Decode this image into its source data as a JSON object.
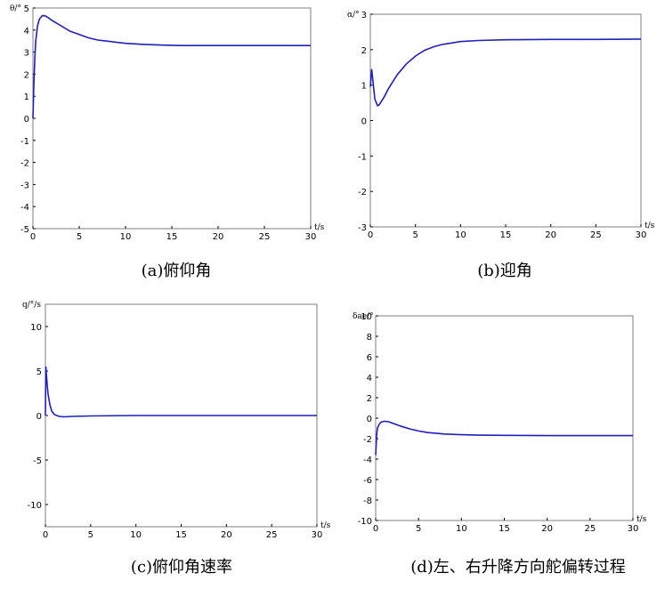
{
  "chart_data": [
    {
      "type": "line",
      "caption": "(a)俯仰角",
      "ylabel": "θ/°",
      "xlabel": "t/s",
      "xlim": [
        0,
        30
      ],
      "ylim": [
        -5,
        5
      ],
      "xticks": [
        0,
        5,
        10,
        15,
        20,
        25,
        30
      ],
      "yticks": [
        -5,
        -4,
        -3,
        -2,
        -1,
        0,
        1,
        2,
        3,
        4,
        5
      ],
      "grid": false,
      "series": [
        {
          "x": [
            0,
            0.1,
            0.2,
            0.3,
            0.5,
            0.7,
            1,
            1.3,
            1.7,
            2,
            3,
            4,
            5,
            6,
            7,
            8,
            10,
            12,
            14,
            16,
            18,
            20,
            25,
            30
          ],
          "y": [
            0,
            1.5,
            2.7,
            3.5,
            4.2,
            4.5,
            4.65,
            4.65,
            4.55,
            4.45,
            4.2,
            3.95,
            3.8,
            3.65,
            3.55,
            3.5,
            3.4,
            3.35,
            3.32,
            3.3,
            3.3,
            3.3,
            3.3,
            3.3
          ]
        }
      ]
    },
    {
      "type": "line",
      "caption": "(b)迎角",
      "ylabel": "α/°",
      "xlabel": "t/s",
      "xlim": [
        0,
        30
      ],
      "ylim": [
        -3,
        3
      ],
      "xticks": [
        0,
        5,
        10,
        15,
        20,
        25,
        30
      ],
      "yticks": [
        -3,
        -2,
        -1,
        0,
        1,
        2,
        3
      ],
      "grid": false,
      "series": [
        {
          "x": [
            0,
            0.15,
            0.3,
            0.5,
            0.8,
            1,
            1.5,
            2,
            3,
            4,
            5,
            6,
            7,
            8,
            10,
            12,
            15,
            20,
            25,
            30
          ],
          "y": [
            0.95,
            1.45,
            1.1,
            0.6,
            0.42,
            0.45,
            0.65,
            0.9,
            1.3,
            1.6,
            1.82,
            1.98,
            2.08,
            2.15,
            2.23,
            2.26,
            2.28,
            2.29,
            2.29,
            2.3
          ]
        }
      ]
    },
    {
      "type": "line",
      "caption": "(c)俯仰角速率",
      "ylabel": "q/°/s",
      "xlabel": "t/s",
      "xlim": [
        0,
        30
      ],
      "ylim": [
        -12.5,
        12.5
      ],
      "xticks": [
        0,
        5,
        10,
        15,
        20,
        25,
        30
      ],
      "yticks": [
        -10,
        -5,
        0,
        5,
        10
      ],
      "grid": false,
      "series": [
        {
          "x": [
            0,
            0.05,
            0.1,
            0.2,
            0.3,
            0.5,
            0.7,
            1,
            1.5,
            2,
            3,
            5,
            10,
            15,
            20,
            25,
            30
          ],
          "y": [
            0,
            5.5,
            4.8,
            3.5,
            2.4,
            1.2,
            0.5,
            0.1,
            -0.1,
            -0.15,
            -0.1,
            -0.05,
            0,
            0,
            0,
            0,
            0
          ]
        }
      ]
    },
    {
      "type": "line",
      "caption": "(d)左、右升降方向舵偏转过程",
      "ylabel": "δae/°",
      "xlabel": "t/s",
      "xlim": [
        0,
        30
      ],
      "ylim": [
        -10,
        10
      ],
      "xticks": [
        0,
        5,
        10,
        15,
        20,
        25,
        30
      ],
      "yticks": [
        -10,
        -8,
        -6,
        -4,
        -2,
        0,
        2,
        4,
        6,
        8,
        10
      ],
      "grid": false,
      "series": [
        {
          "x": [
            0,
            0.1,
            0.2,
            0.4,
            0.6,
            1,
            1.5,
            2,
            3,
            4,
            5,
            6,
            8,
            10,
            12,
            15,
            20,
            25,
            30
          ],
          "y": [
            -3.6,
            -1.8,
            -1.0,
            -0.6,
            -0.4,
            -0.3,
            -0.35,
            -0.5,
            -0.8,
            -1.05,
            -1.25,
            -1.4,
            -1.55,
            -1.62,
            -1.66,
            -1.68,
            -1.7,
            -1.7,
            -1.7
          ]
        }
      ]
    }
  ]
}
